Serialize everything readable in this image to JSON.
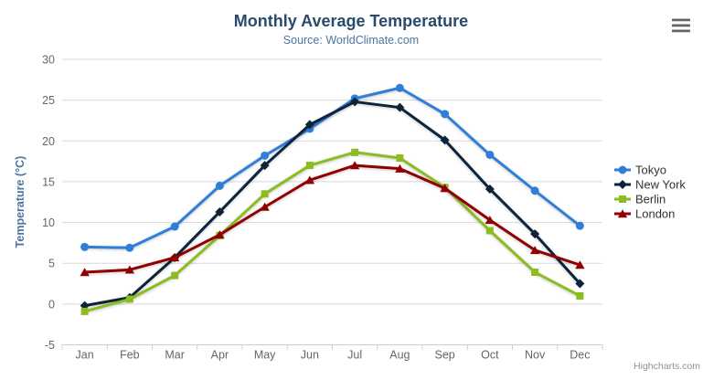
{
  "chart_data": {
    "type": "line",
    "title": "Monthly Average Temperature",
    "subtitle": "Source: WorldClimate.com",
    "xlabel": "",
    "ylabel": "Temperature (°C)",
    "ylim": [
      -5,
      30
    ],
    "ytick_step": 5,
    "grid": true,
    "legend_position": "right",
    "categories": [
      "Jan",
      "Feb",
      "Mar",
      "Apr",
      "May",
      "Jun",
      "Jul",
      "Aug",
      "Sep",
      "Oct",
      "Nov",
      "Dec"
    ],
    "series": [
      {
        "name": "Tokyo",
        "color": "#2f7ed8",
        "marker": "circle",
        "values": [
          7.0,
          6.9,
          9.5,
          14.5,
          18.2,
          21.5,
          25.2,
          26.5,
          23.3,
          18.3,
          13.9,
          9.6
        ]
      },
      {
        "name": "New York",
        "color": "#0d233a",
        "marker": "diamond",
        "values": [
          -0.2,
          0.8,
          5.7,
          11.3,
          17.0,
          22.0,
          24.8,
          24.1,
          20.1,
          14.1,
          8.6,
          2.5
        ]
      },
      {
        "name": "Berlin",
        "color": "#8bbc21",
        "marker": "square",
        "values": [
          -0.9,
          0.6,
          3.5,
          8.4,
          13.5,
          17.0,
          18.6,
          17.9,
          14.3,
          9.0,
          3.9,
          1.0
        ]
      },
      {
        "name": "London",
        "color": "#910000",
        "marker": "triangle",
        "values": [
          3.9,
          4.2,
          5.7,
          8.5,
          11.9,
          15.2,
          17.0,
          16.6,
          14.2,
          10.3,
          6.6,
          4.8
        ]
      }
    ]
  },
  "credit": {
    "label": "Highcharts.com"
  },
  "export_menu": {
    "icon": "hamburger-icon"
  },
  "colors": {
    "title": "#274b6d",
    "subtitle": "#4d759e",
    "axis_title": "#4d759e",
    "tick_label": "#666666",
    "legend_text": "#333333",
    "grid_line": "#d8d8d8",
    "axis_line": "#c0d0e0",
    "credit": "#909090",
    "background": "#ffffff"
  }
}
